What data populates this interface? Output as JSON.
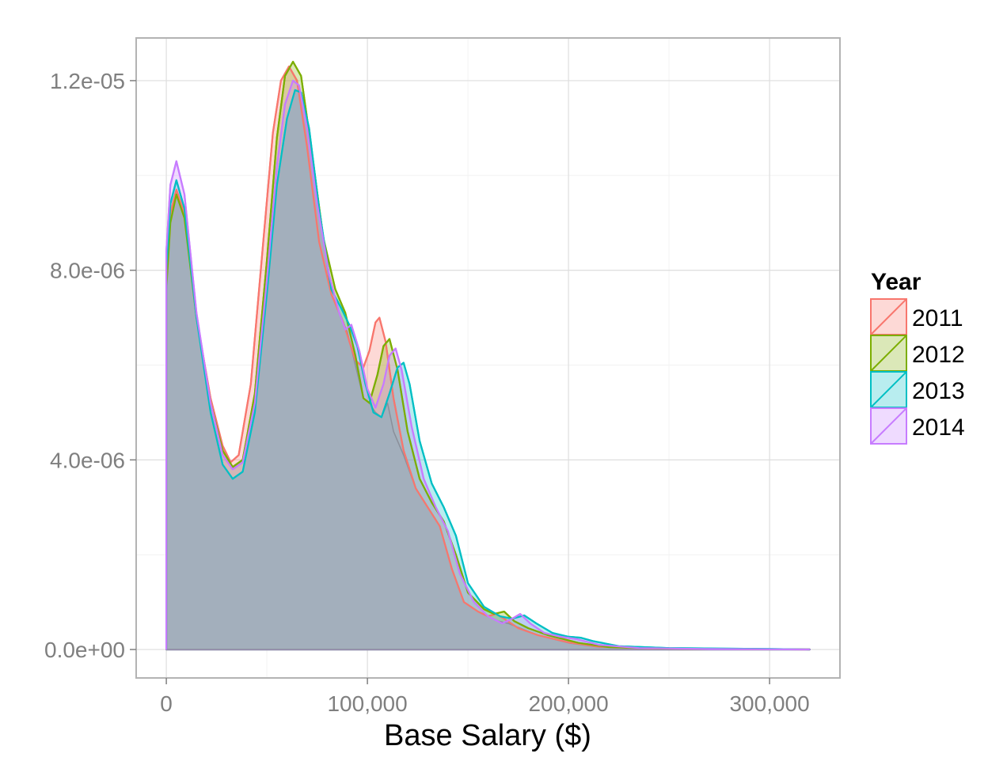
{
  "chart_data": {
    "type": "area",
    "title": "",
    "xlabel": "Base Salary ($)",
    "ylabel": "",
    "xlim": [
      -15000,
      335000
    ],
    "ylim": [
      -6e-07,
      1.29e-05
    ],
    "x_ticks": [
      0,
      100000,
      200000,
      300000
    ],
    "x_tick_labels": [
      "0",
      "100,000",
      "200,000",
      "300,000"
    ],
    "y_ticks": [
      0,
      4e-06,
      8e-06,
      1.2e-05
    ],
    "y_tick_labels": [
      "0.0e+00",
      "4.0e-06",
      "8.0e-06",
      "1.2e-05"
    ],
    "grid": true,
    "legend": {
      "title": "Year",
      "position": "right"
    },
    "fill_opacity": 0.28,
    "series": [
      {
        "name": "2011",
        "color": "#F8766D",
        "points": [
          [
            0,
            0
          ],
          [
            0,
            7.8e-06
          ],
          [
            2000,
            9.2e-06
          ],
          [
            5000,
            9.7e-06
          ],
          [
            9000,
            9.2e-06
          ],
          [
            15000,
            7e-06
          ],
          [
            22000,
            5.3e-06
          ],
          [
            28000,
            4.3e-06
          ],
          [
            32000,
            3.95e-06
          ],
          [
            36000,
            4.1e-06
          ],
          [
            42000,
            5.6e-06
          ],
          [
            48000,
            8.5e-06
          ],
          [
            53000,
            1.09e-05
          ],
          [
            57000,
            1.2e-05
          ],
          [
            61000,
            1.23e-05
          ],
          [
            65000,
            1.2e-05
          ],
          [
            70000,
            1.06e-05
          ],
          [
            76000,
            8.6e-06
          ],
          [
            82000,
            7.5e-06
          ],
          [
            88000,
            6.9e-06
          ],
          [
            94000,
            6.1e-06
          ],
          [
            98000,
            5.95e-06
          ],
          [
            101000,
            6.3e-06
          ],
          [
            104000,
            6.9e-06
          ],
          [
            106000,
            7e-06
          ],
          [
            109000,
            6.5e-06
          ],
          [
            113000,
            5.3e-06
          ],
          [
            118000,
            4.2e-06
          ],
          [
            124000,
            3.4e-06
          ],
          [
            130000,
            3e-06
          ],
          [
            136000,
            2.6e-06
          ],
          [
            142000,
            1.7e-06
          ],
          [
            148000,
            1e-06
          ],
          [
            155000,
            8e-07
          ],
          [
            160000,
            7e-07
          ],
          [
            164000,
            7.5e-07
          ],
          [
            168000,
            6.5e-07
          ],
          [
            175000,
            4.5e-07
          ],
          [
            185000,
            3e-07
          ],
          [
            200000,
            1.5e-07
          ],
          [
            215000,
            6e-08
          ],
          [
            240000,
            2e-08
          ],
          [
            280000,
            1e-08
          ],
          [
            320000,
            0
          ],
          [
            320000,
            0
          ]
        ]
      },
      {
        "name": "2012",
        "color": "#7CAE00",
        "points": [
          [
            0,
            0
          ],
          [
            0,
            7.6e-06
          ],
          [
            2000,
            9e-06
          ],
          [
            5000,
            9.6e-06
          ],
          [
            9000,
            9.1e-06
          ],
          [
            15000,
            7e-06
          ],
          [
            22000,
            5.2e-06
          ],
          [
            28000,
            4.2e-06
          ],
          [
            33000,
            3.85e-06
          ],
          [
            38000,
            4e-06
          ],
          [
            44000,
            5.4e-06
          ],
          [
            50000,
            8.2e-06
          ],
          [
            55000,
            1.08e-05
          ],
          [
            59000,
            1.21e-05
          ],
          [
            63000,
            1.24e-05
          ],
          [
            67000,
            1.21e-05
          ],
          [
            72000,
            1.06e-05
          ],
          [
            78000,
            8.7e-06
          ],
          [
            84000,
            7.6e-06
          ],
          [
            89000,
            7.1e-06
          ],
          [
            94000,
            6.2e-06
          ],
          [
            98000,
            5.3e-06
          ],
          [
            101000,
            5.2e-06
          ],
          [
            105000,
            5.8e-06
          ],
          [
            108000,
            6.4e-06
          ],
          [
            111000,
            6.55e-06
          ],
          [
            115000,
            5.9e-06
          ],
          [
            120000,
            4.6e-06
          ],
          [
            126000,
            3.6e-06
          ],
          [
            132000,
            3.1e-06
          ],
          [
            138000,
            2.7e-06
          ],
          [
            144000,
            2e-06
          ],
          [
            150000,
            1.2e-06
          ],
          [
            158000,
            8.5e-07
          ],
          [
            163000,
            7.5e-07
          ],
          [
            168000,
            8e-07
          ],
          [
            173000,
            6e-07
          ],
          [
            180000,
            4.5e-07
          ],
          [
            190000,
            3e-07
          ],
          [
            205000,
            1.4e-07
          ],
          [
            220000,
            5e-08
          ],
          [
            245000,
            2e-08
          ],
          [
            285000,
            1e-08
          ],
          [
            320000,
            0
          ],
          [
            320000,
            0
          ]
        ]
      },
      {
        "name": "2013",
        "color": "#00BFC4",
        "points": [
          [
            0,
            0
          ],
          [
            0,
            8e-06
          ],
          [
            2000,
            9.4e-06
          ],
          [
            5000,
            9.9e-06
          ],
          [
            9000,
            9.3e-06
          ],
          [
            15000,
            7e-06
          ],
          [
            22000,
            5e-06
          ],
          [
            28000,
            3.9e-06
          ],
          [
            33000,
            3.6e-06
          ],
          [
            38000,
            3.75e-06
          ],
          [
            44000,
            5e-06
          ],
          [
            50000,
            7.5e-06
          ],
          [
            55000,
            9.8e-06
          ],
          [
            60000,
            1.12e-05
          ],
          [
            64000,
            1.18e-05
          ],
          [
            67000,
            1.175e-05
          ],
          [
            71000,
            1.1e-05
          ],
          [
            76000,
            9.3e-06
          ],
          [
            82000,
            7.6e-06
          ],
          [
            87000,
            7.2e-06
          ],
          [
            91000,
            6.85e-06
          ],
          [
            95000,
            6.4e-06
          ],
          [
            99000,
            5.6e-06
          ],
          [
            103000,
            5e-06
          ],
          [
            107000,
            4.9e-06
          ],
          [
            111000,
            5.4e-06
          ],
          [
            115000,
            5.95e-06
          ],
          [
            118000,
            6.05e-06
          ],
          [
            121000,
            5.6e-06
          ],
          [
            126000,
            4.4e-06
          ],
          [
            132000,
            3.5e-06
          ],
          [
            138000,
            3e-06
          ],
          [
            144000,
            2.4e-06
          ],
          [
            150000,
            1.4e-06
          ],
          [
            158000,
            9e-07
          ],
          [
            166000,
            7e-07
          ],
          [
            172000,
            6.5e-07
          ],
          [
            178000,
            7.2e-07
          ],
          [
            184000,
            5.5e-07
          ],
          [
            192000,
            3.5e-07
          ],
          [
            200000,
            2.7e-07
          ],
          [
            206000,
            2.5e-07
          ],
          [
            212000,
            1.8e-07
          ],
          [
            225000,
            7e-08
          ],
          [
            250000,
            3e-08
          ],
          [
            275000,
            2e-08
          ],
          [
            300000,
            1e-08
          ],
          [
            320000,
            0
          ],
          [
            320000,
            0
          ]
        ]
      },
      {
        "name": "2014",
        "color": "#C77CFF",
        "points": [
          [
            0,
            0
          ],
          [
            0,
            8.4e-06
          ],
          [
            2000,
            9.8e-06
          ],
          [
            5000,
            1.03e-05
          ],
          [
            9000,
            9.6e-06
          ],
          [
            15000,
            7.1e-06
          ],
          [
            22000,
            5.2e-06
          ],
          [
            28000,
            4.1e-06
          ],
          [
            33000,
            3.8e-06
          ],
          [
            38000,
            3.95e-06
          ],
          [
            44000,
            5.2e-06
          ],
          [
            50000,
            7.8e-06
          ],
          [
            55000,
            1.02e-05
          ],
          [
            59000,
            1.15e-05
          ],
          [
            63000,
            1.2e-05
          ],
          [
            66000,
            1.19e-05
          ],
          [
            70000,
            1.1e-05
          ],
          [
            75000,
            9.4e-06
          ],
          [
            81000,
            7.9e-06
          ],
          [
            86000,
            7.1e-06
          ],
          [
            89000,
            6.75e-06
          ],
          [
            92000,
            6.85e-06
          ],
          [
            96000,
            6.3e-06
          ],
          [
            100000,
            5.5e-06
          ],
          [
            104000,
            5.1e-06
          ],
          [
            108000,
            5.6e-06
          ],
          [
            111000,
            6.2e-06
          ],
          [
            114000,
            6.35e-06
          ],
          [
            117000,
            5.9e-06
          ],
          [
            122000,
            4.7e-06
          ],
          [
            128000,
            3.6e-06
          ],
          [
            134000,
            3e-06
          ],
          [
            140000,
            2.5e-06
          ],
          [
            146000,
            1.6e-06
          ],
          [
            153000,
            1e-06
          ],
          [
            160000,
            7e-07
          ],
          [
            167000,
            5.5e-07
          ],
          [
            172000,
            6.5e-07
          ],
          [
            176000,
            7.5e-07
          ],
          [
            181000,
            5.5e-07
          ],
          [
            188000,
            3.5e-07
          ],
          [
            196000,
            2.7e-07
          ],
          [
            204000,
            2.2e-07
          ],
          [
            215000,
            1e-07
          ],
          [
            235000,
            3e-08
          ],
          [
            270000,
            1e-08
          ],
          [
            320000,
            0
          ],
          [
            320000,
            0
          ]
        ]
      },
      {
        "name": "",
        "color": "#8A8F9A",
        "overlap_fill": "#A3AFBC",
        "points": [
          [
            0,
            0
          ],
          [
            0,
            7.6e-06
          ],
          [
            2000,
            9e-06
          ],
          [
            5000,
            9.6e-06
          ],
          [
            9000,
            9.1e-06
          ],
          [
            15000,
            7e-06
          ],
          [
            22000,
            5e-06
          ],
          [
            28000,
            3.9e-06
          ],
          [
            33000,
            3.6e-06
          ],
          [
            38000,
            3.75e-06
          ],
          [
            44000,
            5e-06
          ],
          [
            50000,
            7.5e-06
          ],
          [
            55000,
            9.8e-06
          ],
          [
            60000,
            1.12e-05
          ],
          [
            64000,
            1.18e-05
          ],
          [
            67000,
            1.175e-05
          ],
          [
            71000,
            1.1e-05
          ],
          [
            76000,
            9.3e-06
          ],
          [
            82000,
            7.5e-06
          ],
          [
            87000,
            7e-06
          ],
          [
            90000,
            6.7e-06
          ],
          [
            94000,
            6e-06
          ],
          [
            98000,
            5.3e-06
          ],
          [
            101000,
            5.2e-06
          ],
          [
            104000,
            5e-06
          ],
          [
            107000,
            4.9e-06
          ],
          [
            110000,
            5.2e-06
          ],
          [
            113000,
            4.6e-06
          ],
          [
            118000,
            4.1e-06
          ],
          [
            124000,
            3.4e-06
          ],
          [
            130000,
            3e-06
          ],
          [
            136000,
            2.6e-06
          ],
          [
            142000,
            1.7e-06
          ],
          [
            148000,
            1e-06
          ],
          [
            155000,
            8e-07
          ],
          [
            160000,
            7e-07
          ],
          [
            165000,
            6e-07
          ],
          [
            170000,
            5.5e-07
          ],
          [
            176000,
            4.5e-07
          ],
          [
            185000,
            3e-07
          ],
          [
            200000,
            1.4e-07
          ],
          [
            215000,
            5e-08
          ],
          [
            240000,
            2e-08
          ],
          [
            280000,
            1e-08
          ],
          [
            320000,
            0
          ],
          [
            320000,
            0
          ]
        ]
      }
    ]
  }
}
